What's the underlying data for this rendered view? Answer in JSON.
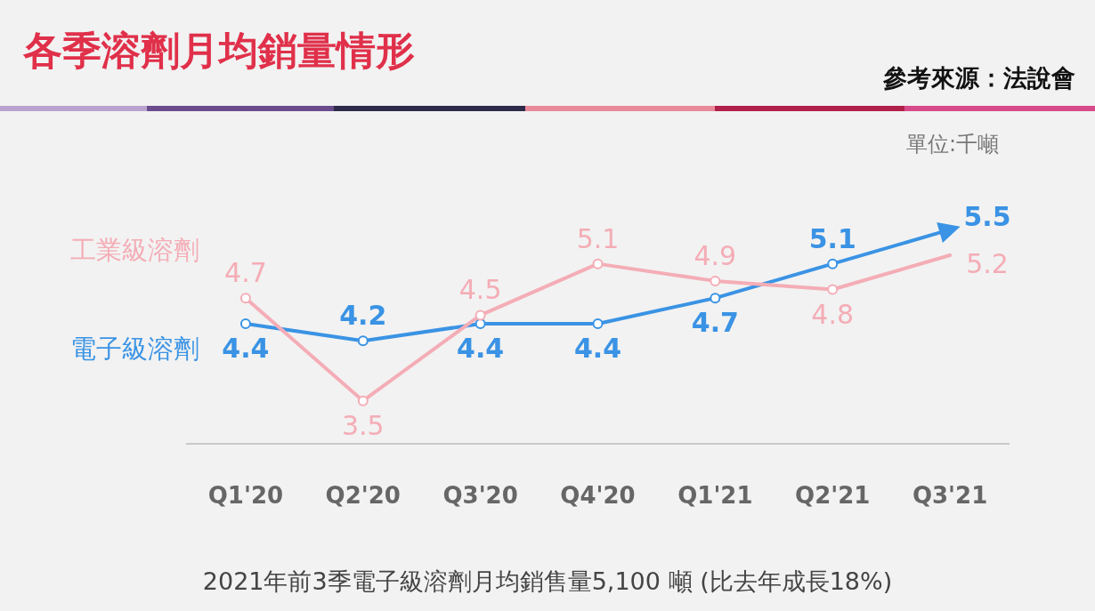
{
  "chart_data": {
    "type": "line",
    "title": "各季溶劑月均銷量情形",
    "categories": [
      "Q1'20",
      "Q2'20",
      "Q3'20",
      "Q4'20",
      "Q1'21",
      "Q2'21",
      "Q3'21"
    ],
    "series": [
      {
        "name": "工業級溶劑",
        "color": "#f4adb6",
        "values": [
          4.7,
          3.5,
          4.5,
          5.1,
          4.9,
          4.8,
          5.2
        ]
      },
      {
        "name": "電子級溶劑",
        "color": "#3a93e4",
        "values": [
          4.4,
          4.2,
          4.4,
          4.4,
          4.7,
          5.1,
          5.5
        ]
      }
    ],
    "annotations": [
      "參考來源：法說會",
      "單位:千噸",
      "2021年前3季電子級溶劑月均銷售量5,100 噸 (比去年成長18%)"
    ],
    "data_labels": true,
    "marker": "circle",
    "line_style": "solid",
    "grid": false,
    "legend": false
  }
}
